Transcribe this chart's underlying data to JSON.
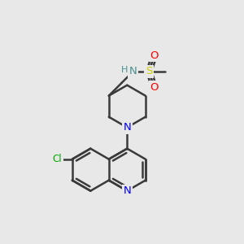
{
  "bg_color": "#e8e8e8",
  "bond_color": "#404040",
  "bond_width": 1.5,
  "atom_colors": {
    "N": "#0000ff",
    "N_pip": "#0000ff",
    "N_h": "#4a9090",
    "S": "#cccc00",
    "O": "#ff0000",
    "Cl": "#00aa00",
    "C": "#404040"
  },
  "font_size": 9
}
